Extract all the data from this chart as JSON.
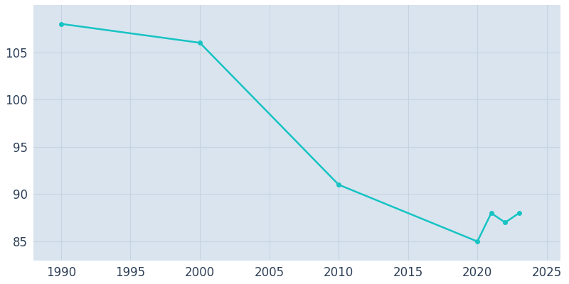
{
  "years": [
    1990,
    2000,
    2010,
    2020,
    2021,
    2022,
    2023
  ],
  "population": [
    108,
    106,
    91,
    85,
    88,
    87,
    88
  ],
  "line_color": "#17C3C3",
  "marker_color": "#17C3C3",
  "plot_background_color": "#DAE4EF",
  "figure_background_color": "#FFFFFF",
  "grid_color": "#C5D3E0",
  "xlim": [
    1988,
    2026
  ],
  "ylim": [
    83,
    110
  ],
  "xticks": [
    1990,
    1995,
    2000,
    2005,
    2010,
    2015,
    2020,
    2025
  ],
  "yticks": [
    85,
    90,
    95,
    100,
    105
  ],
  "tick_color": "#2E4057",
  "tick_fontsize": 12
}
